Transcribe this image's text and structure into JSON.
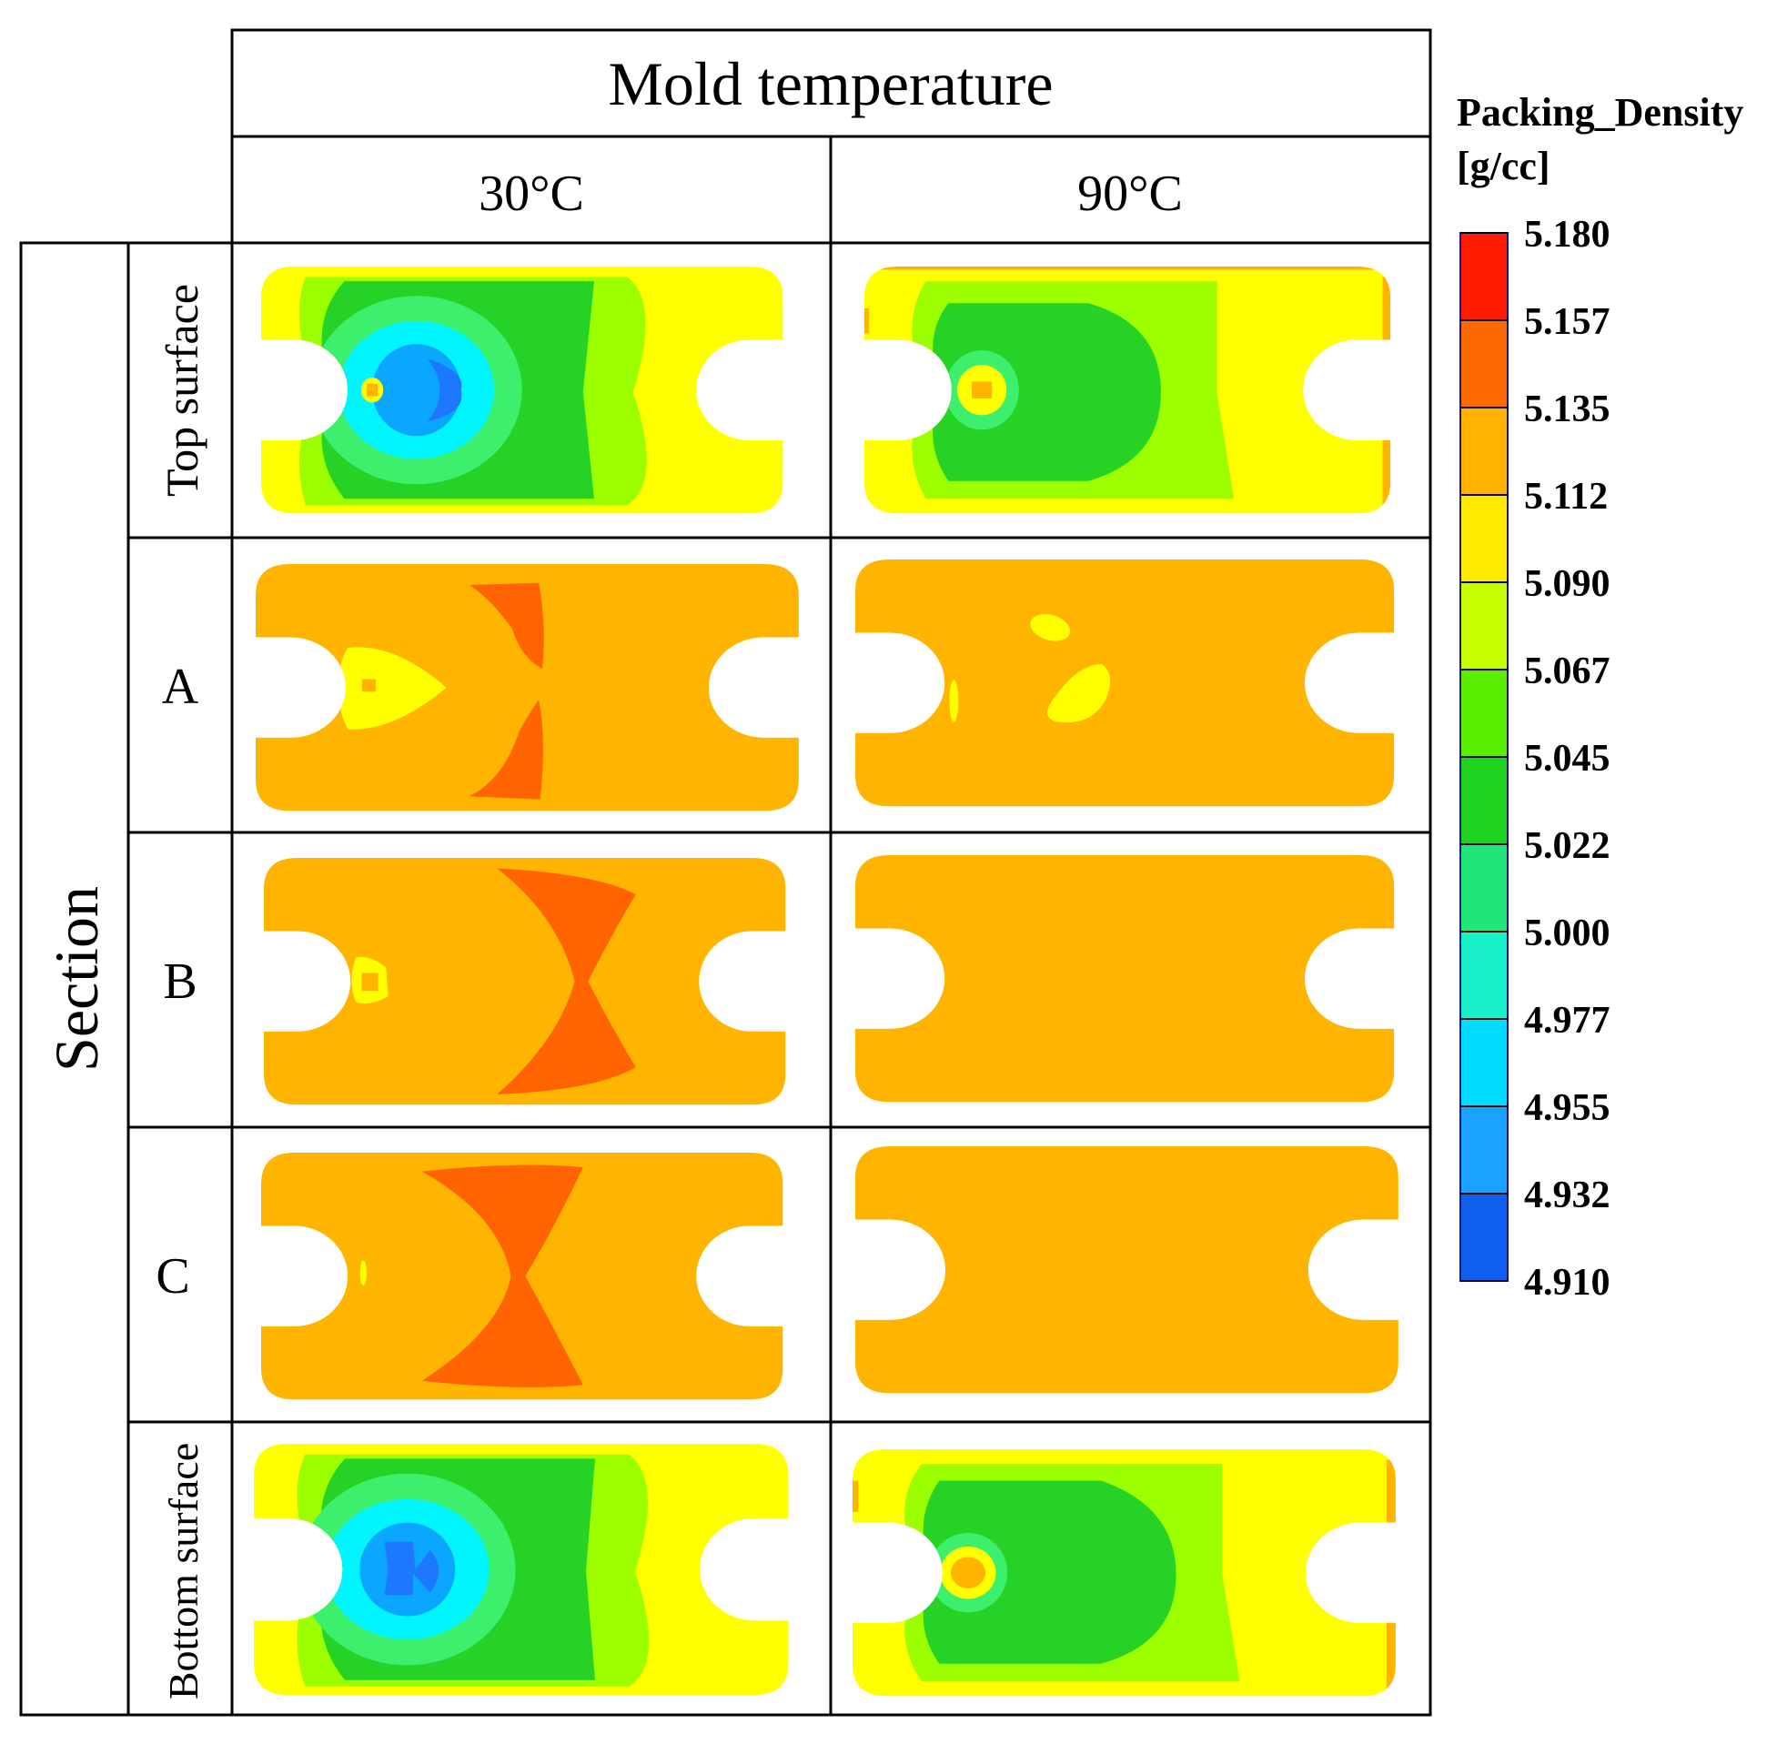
{
  "header": {
    "title": "Mold temperature",
    "columns": [
      "30°C",
      "90°C"
    ]
  },
  "section_label": "Section",
  "rows": [
    "Top surface",
    "A",
    "B",
    "C",
    "Bottom surface"
  ],
  "colorbar": {
    "title_line1": "Packing_Density",
    "title_line2": "[g/cc]",
    "ticks": [
      "5.180",
      "5.157",
      "5.135",
      "5.112",
      "5.090",
      "5.067",
      "5.045",
      "5.022",
      "5.000",
      "4.977",
      "4.955",
      "4.932",
      "4.910"
    ],
    "colors": [
      "#ff1a00",
      "#ff6a00",
      "#ffb300",
      "#ffeb00",
      "#c8ff00",
      "#5cee00",
      "#1ed21e",
      "#20e67a",
      "#18f0c8",
      "#00dcff",
      "#1aa2ff",
      "#1060f0",
      "#0010ff"
    ]
  },
  "plate_colors": {
    "edge_yellow": "#ffff00",
    "yellow_green": "#9cff00",
    "green": "#26d226",
    "light_green": "#3cf06e",
    "cyan": "#00f5ff",
    "light_blue": "#0aa6ff",
    "blue": "#1e78ff",
    "orange": "#ffb400",
    "red_orange": "#ff6400"
  }
}
